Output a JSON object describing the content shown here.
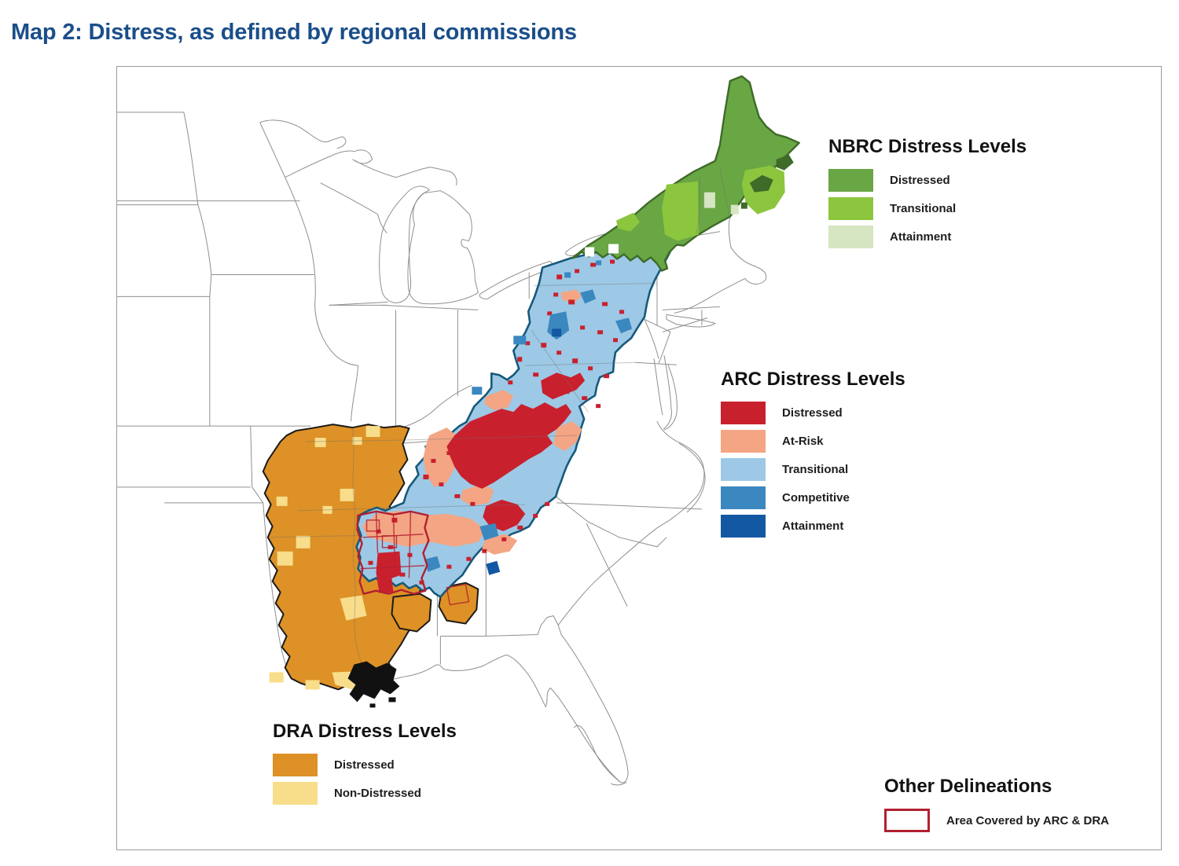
{
  "title": "Map 2: Distress, as defined by regional commissions",
  "colors": {
    "title_blue": "#1a4e8a",
    "frame_border": "#9b9b9b",
    "state_line": "#8f8f8f",
    "nbrc_distressed": "#69a644",
    "nbrc_transitional": "#8cc63e",
    "nbrc_attainment": "#d6e5c2",
    "nbrc_border": "#3e6b28",
    "arc_distressed": "#c9202e",
    "arc_at_risk": "#f4a583",
    "arc_transitional": "#9dc9e6",
    "arc_competitive": "#3b87c0",
    "arc_attainment": "#1358a3",
    "arc_border": "#17597a",
    "dra_distressed": "#dd9126",
    "dra_non_distressed": "#f8dd8a",
    "dra_border": "#1a1a1a",
    "overlap_outline": "#b22030"
  },
  "legends": {
    "nbrc": {
      "title": "NBRC Distress Levels",
      "items": [
        {
          "label": "Distressed",
          "color": "#69a644"
        },
        {
          "label": "Transitional",
          "color": "#8cc63e"
        },
        {
          "label": "Attainment",
          "color": "#d6e5c2"
        }
      ]
    },
    "arc": {
      "title": "ARC Distress Levels",
      "items": [
        {
          "label": "Distressed",
          "color": "#c9202e"
        },
        {
          "label": "At-Risk",
          "color": "#f4a583"
        },
        {
          "label": "Transitional",
          "color": "#9dc9e6"
        },
        {
          "label": "Competitive",
          "color": "#3b87c0"
        },
        {
          "label": "Attainment",
          "color": "#1358a3"
        }
      ]
    },
    "dra": {
      "title": "DRA Distress Levels",
      "items": [
        {
          "label": "Distressed",
          "color": "#dd9126"
        },
        {
          "label": "Non-Distressed",
          "color": "#f8dd8a"
        }
      ]
    },
    "other": {
      "title": "Other Delineations",
      "items": [
        {
          "label": "Area Covered by ARC & DRA",
          "color": "#ffffff",
          "border": "#b22030"
        }
      ]
    }
  },
  "map": {
    "regions": [
      {
        "name": "NBRC region"
      },
      {
        "name": "ARC region"
      },
      {
        "name": "DRA region"
      },
      {
        "name": "ARC and DRA overlap area"
      }
    ]
  }
}
